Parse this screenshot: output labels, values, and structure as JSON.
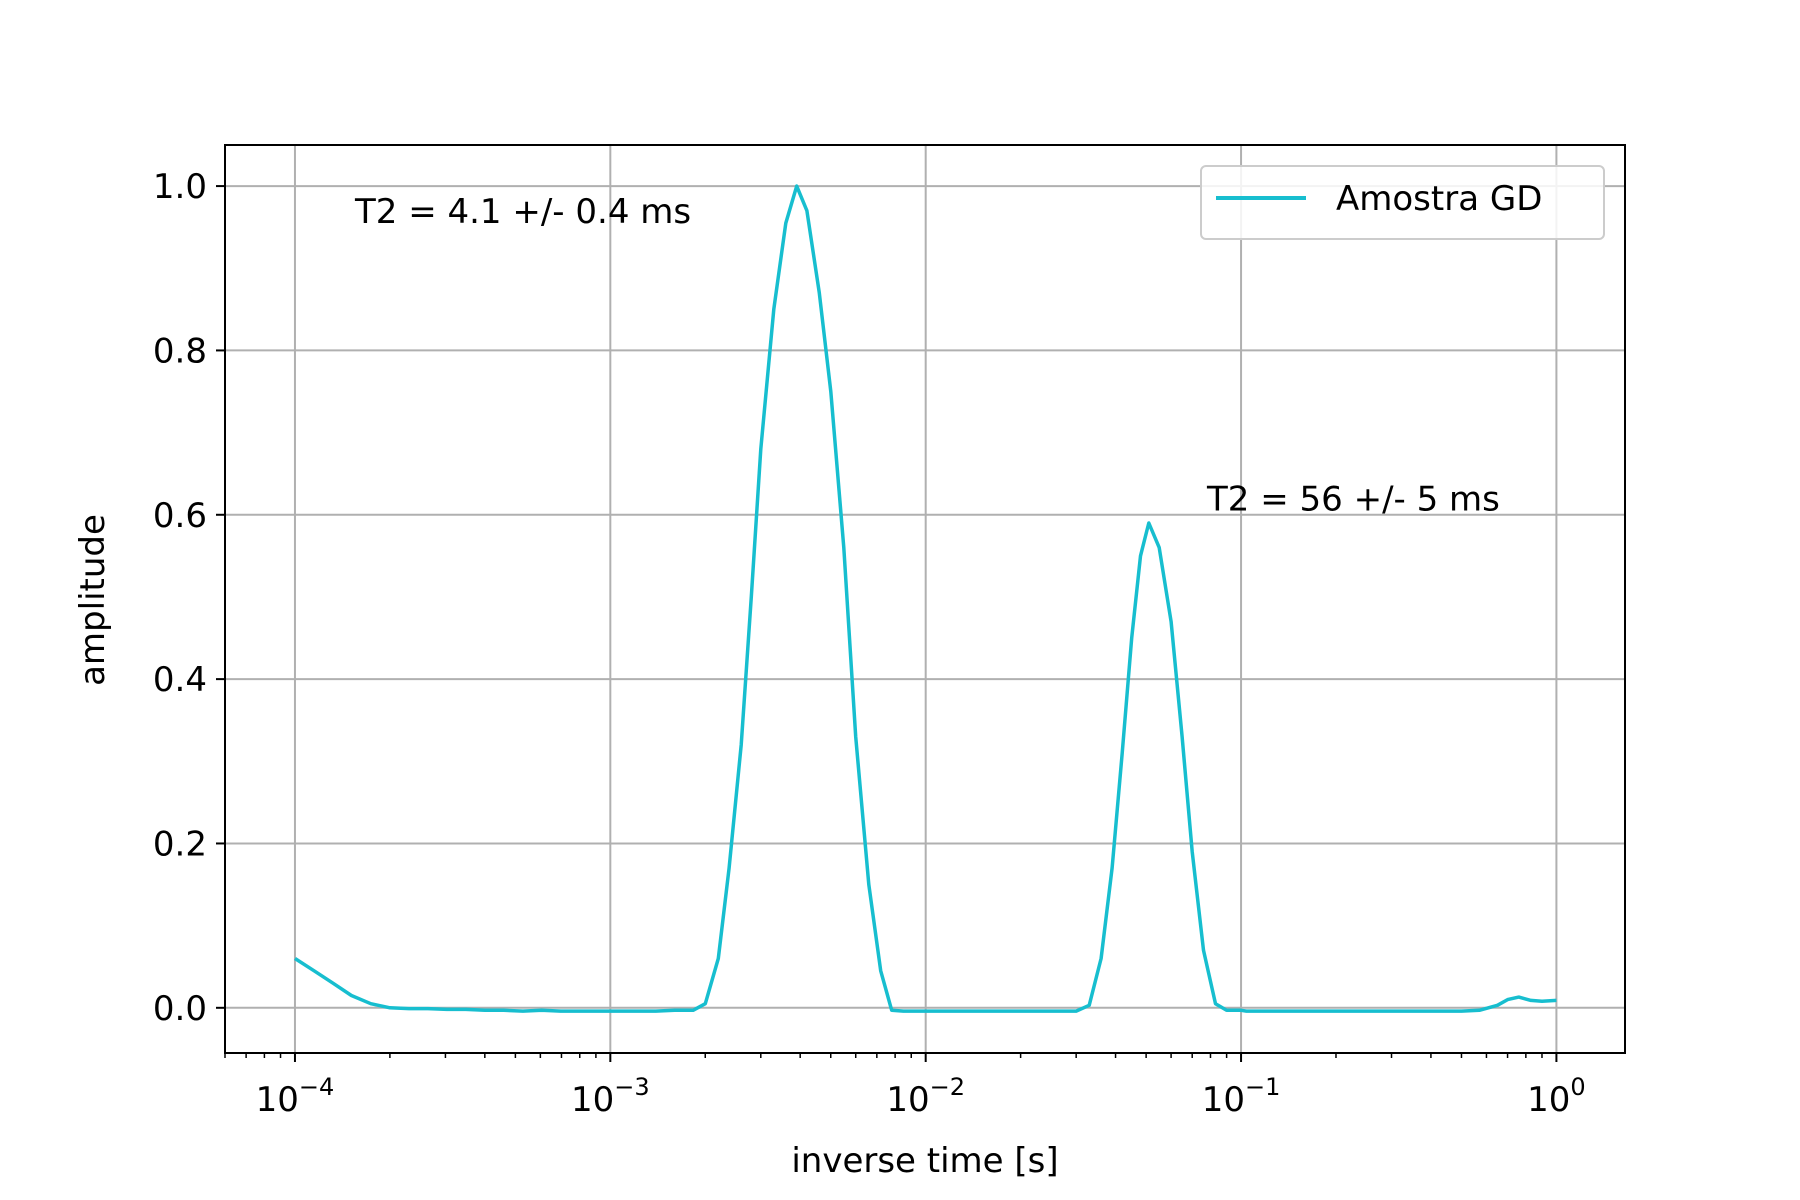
{
  "chart_data": {
    "type": "line",
    "title": "",
    "xlabel": "inverse time [s]",
    "ylabel": "amplitude",
    "xscale": "log",
    "xlim": [
      6e-05,
      1.65
    ],
    "ylim": [
      -0.055,
      1.05
    ],
    "grid": true,
    "legend_placement": "top-right",
    "x_ticks": [
      {
        "value": 0.0001,
        "base": "10",
        "exp": "−4"
      },
      {
        "value": 0.001,
        "base": "10",
        "exp": "−3"
      },
      {
        "value": 0.01,
        "base": "10",
        "exp": "−2"
      },
      {
        "value": 0.1,
        "base": "10",
        "exp": "−1"
      },
      {
        "value": 1,
        "base": "10",
        "exp": "0"
      }
    ],
    "y_ticks": [
      {
        "value": 0.0,
        "label": "0.0"
      },
      {
        "value": 0.2,
        "label": "0.2"
      },
      {
        "value": 0.4,
        "label": "0.4"
      },
      {
        "value": 0.6,
        "label": "0.6"
      },
      {
        "value": 0.8,
        "label": "0.8"
      },
      {
        "value": 1.0,
        "label": "1.0"
      }
    ],
    "series": [
      {
        "name": "Amostra GD",
        "color": "#17becf",
        "x": [
          0.0001,
          0.000115,
          0.000132,
          0.000151,
          0.000174,
          0.0002,
          0.00023,
          0.000264,
          0.000303,
          0.000348,
          0.0004,
          0.000459,
          0.000528,
          0.000606,
          0.000696,
          0.0008,
          0.000919,
          0.001056,
          0.001213,
          0.001393,
          0.0016,
          0.00183,
          0.002,
          0.0022,
          0.00238,
          0.0026,
          0.0028,
          0.003,
          0.0033,
          0.0036,
          0.0039,
          0.0042,
          0.0046,
          0.005,
          0.0055,
          0.006,
          0.0066,
          0.0072,
          0.0078,
          0.0085,
          0.01,
          0.012,
          0.015,
          0.02,
          0.025,
          0.03,
          0.033,
          0.036,
          0.039,
          0.042,
          0.045,
          0.048,
          0.051,
          0.055,
          0.06,
          0.065,
          0.07,
          0.076,
          0.083,
          0.09,
          0.1,
          0.104,
          0.13,
          0.16,
          0.2,
          0.3,
          0.4,
          0.5,
          0.57,
          0.65,
          0.7,
          0.76,
          0.83,
          0.9,
          1.0
        ],
        "y": [
          0.06,
          0.045,
          0.03,
          0.015,
          0.005,
          0.0,
          -0.001,
          -0.001,
          -0.002,
          -0.002,
          -0.003,
          -0.003,
          -0.004,
          -0.003,
          -0.004,
          -0.004,
          -0.004,
          -0.004,
          -0.004,
          -0.004,
          -0.003,
          -0.003,
          0.005,
          0.06,
          0.17,
          0.32,
          0.5,
          0.68,
          0.85,
          0.955,
          1.0,
          0.97,
          0.87,
          0.75,
          0.56,
          0.33,
          0.15,
          0.045,
          -0.003,
          -0.004,
          -0.004,
          -0.004,
          -0.004,
          -0.004,
          -0.004,
          -0.004,
          0.003,
          0.06,
          0.17,
          0.31,
          0.45,
          0.55,
          0.59,
          0.56,
          0.47,
          0.33,
          0.19,
          0.07,
          0.005,
          -0.003,
          -0.003,
          -0.004,
          -0.004,
          -0.004,
          -0.004,
          -0.004,
          -0.004,
          -0.004,
          -0.003,
          0.003,
          0.01,
          0.013,
          0.009,
          0.008,
          0.009
        ]
      }
    ],
    "annotations": [
      {
        "text": "T2 = 4.1 +/- 0.4 ms",
        "x": 0.000155,
        "y": 0.955
      },
      {
        "text": "T2 = 56 +/- 5 ms",
        "x": 0.078,
        "y": 0.605
      }
    ]
  }
}
